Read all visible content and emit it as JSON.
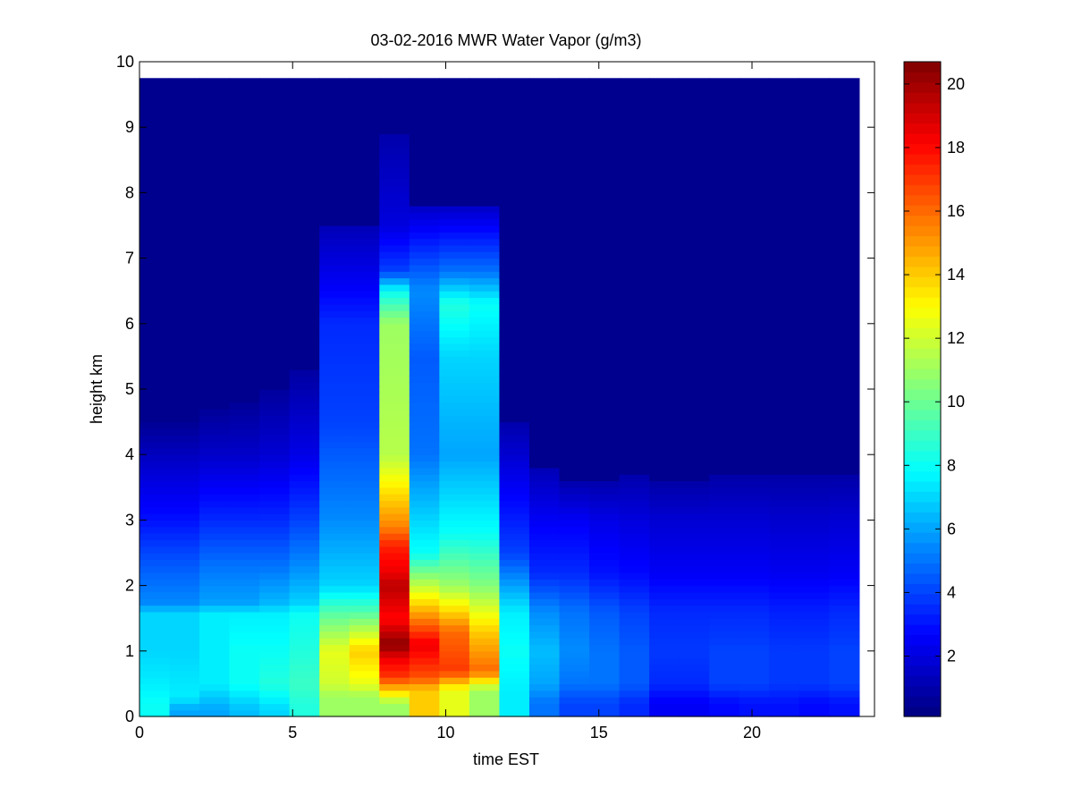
{
  "chart_data": {
    "type": "heatmap",
    "title": "03-02-2016 MWR Water Vapor (g/m3)",
    "xlabel": "time EST",
    "ylabel": "height km",
    "xlim": [
      0,
      24
    ],
    "ylim": [
      0,
      10
    ],
    "xticks": [
      0,
      5,
      10,
      15,
      20
    ],
    "yticks": [
      0,
      1,
      2,
      3,
      4,
      5,
      6,
      7,
      8,
      9,
      10
    ],
    "colorbar": {
      "colormap": "jet",
      "range": [
        0.1,
        20.7
      ],
      "ticks": [
        2,
        4,
        6,
        8,
        10,
        12,
        14,
        16,
        18,
        20
      ]
    },
    "data_extent": {
      "x": [
        0,
        23.5
      ],
      "y": [
        0,
        9.75
      ]
    },
    "columns": [
      {
        "t": 0,
        "cap": 4.5,
        "rows": [
          {
            "h": 0.2,
            "v": 8
          },
          {
            "h": 0.5,
            "v": 7.5
          },
          {
            "h": 1.0,
            "v": 7
          },
          {
            "h": 1.6,
            "v": 7
          },
          {
            "h": 1.7,
            "v": 5.5
          },
          {
            "h": 2.3,
            "v": 4.5
          },
          {
            "h": 3.0,
            "v": 3
          },
          {
            "h": 4.0,
            "v": 1.4
          },
          {
            "h": 4.5,
            "v": 0.5
          }
        ]
      },
      {
        "t": 1,
        "cap": 4.5,
        "rows": [
          {
            "h": 0.1,
            "v": 6
          },
          {
            "h": 0.3,
            "v": 7.5
          },
          {
            "h": 1.0,
            "v": 7
          },
          {
            "h": 1.6,
            "v": 7
          },
          {
            "h": 1.7,
            "v": 5.5
          },
          {
            "h": 2.3,
            "v": 4.5
          },
          {
            "h": 3.0,
            "v": 3
          },
          {
            "h": 4.0,
            "v": 1.4
          },
          {
            "h": 4.5,
            "v": 0.5
          }
        ]
      },
      {
        "t": 2,
        "cap": 4.7,
        "rows": [
          {
            "h": 0.1,
            "v": 6
          },
          {
            "h": 0.5,
            "v": 7.5
          },
          {
            "h": 1.0,
            "v": 7.5
          },
          {
            "h": 1.6,
            "v": 7.5
          },
          {
            "h": 1.7,
            "v": 6
          },
          {
            "h": 2.3,
            "v": 5
          },
          {
            "h": 3.0,
            "v": 3.5
          },
          {
            "h": 4.0,
            "v": 1.6
          },
          {
            "h": 4.7,
            "v": 0.6
          }
        ]
      },
      {
        "t": 3,
        "cap": 4.8,
        "rows": [
          {
            "h": 0.1,
            "v": 6.5
          },
          {
            "h": 0.5,
            "v": 8
          },
          {
            "h": 1.0,
            "v": 8
          },
          {
            "h": 1.6,
            "v": 7.5
          },
          {
            "h": 1.7,
            "v": 6
          },
          {
            "h": 2.3,
            "v": 5
          },
          {
            "h": 3.0,
            "v": 3.5
          },
          {
            "h": 4.0,
            "v": 1.6
          },
          {
            "h": 4.8,
            "v": 0.6
          }
        ]
      },
      {
        "t": 4,
        "cap": 5.0,
        "rows": [
          {
            "h": 0.1,
            "v": 7
          },
          {
            "h": 0.5,
            "v": 8.5
          },
          {
            "h": 1.0,
            "v": 8
          },
          {
            "h": 1.6,
            "v": 7.5
          },
          {
            "h": 1.7,
            "v": 6.5
          },
          {
            "h": 2.3,
            "v": 5
          },
          {
            "h": 3.0,
            "v": 3.5
          },
          {
            "h": 4.0,
            "v": 1.8
          },
          {
            "h": 5.0,
            "v": 0.7
          }
        ]
      },
      {
        "t": 5,
        "cap": 5.3,
        "rows": [
          {
            "h": 0.2,
            "v": 8.5
          },
          {
            "h": 0.5,
            "v": 9
          },
          {
            "h": 1.0,
            "v": 8.5
          },
          {
            "h": 1.6,
            "v": 8
          },
          {
            "h": 1.7,
            "v": 7
          },
          {
            "h": 2.3,
            "v": 5.5
          },
          {
            "h": 3.0,
            "v": 4
          },
          {
            "h": 4.0,
            "v": 2.2
          },
          {
            "h": 5.3,
            "v": 0.8
          }
        ]
      },
      {
        "t": 6,
        "cap": 7.5,
        "rows": [
          {
            "h": 0.3,
            "v": 11
          },
          {
            "h": 0.5,
            "v": 12
          },
          {
            "h": 1.0,
            "v": 12.5
          },
          {
            "h": 1.6,
            "v": 9.5
          },
          {
            "h": 2.0,
            "v": 7
          },
          {
            "h": 3.0,
            "v": 5.5
          },
          {
            "h": 4.5,
            "v": 4
          },
          {
            "h": 6.0,
            "v": 3.5
          },
          {
            "h": 6.6,
            "v": 2.5
          },
          {
            "h": 7.5,
            "v": 1.2
          }
        ]
      },
      {
        "t": 7,
        "cap": 7.5,
        "rows": [
          {
            "h": 0.3,
            "v": 11
          },
          {
            "h": 0.5,
            "v": 12.5
          },
          {
            "h": 1.0,
            "v": 14
          },
          {
            "h": 1.6,
            "v": 9.5
          },
          {
            "h": 2.0,
            "v": 7
          },
          {
            "h": 3.0,
            "v": 5.5
          },
          {
            "h": 4.5,
            "v": 4
          },
          {
            "h": 6.0,
            "v": 3.5
          },
          {
            "h": 6.6,
            "v": 2.5
          },
          {
            "h": 7.5,
            "v": 1.2
          }
        ]
      },
      {
        "t": 8,
        "cap": 8.9,
        "rows": [
          {
            "h": 0.2,
            "v": 11
          },
          {
            "h": 0.4,
            "v": 14
          },
          {
            "h": 0.6,
            "v": 17
          },
          {
            "h": 0.9,
            "v": 18.5
          },
          {
            "h": 1.1,
            "v": 20.5
          },
          {
            "h": 1.5,
            "v": 18
          },
          {
            "h": 2.0,
            "v": 19.5
          },
          {
            "h": 2.2,
            "v": 18.5
          },
          {
            "h": 2.6,
            "v": 17.5
          },
          {
            "h": 2.9,
            "v": 15.5
          },
          {
            "h": 4.0,
            "v": 11.5
          },
          {
            "h": 6.0,
            "v": 11
          },
          {
            "h": 6.5,
            "v": 8
          },
          {
            "h": 6.8,
            "v": 4
          },
          {
            "h": 7.5,
            "v": 2
          },
          {
            "h": 8.9,
            "v": 1
          }
        ]
      },
      {
        "t": 9,
        "cap": 7.8,
        "rows": [
          {
            "h": 0.4,
            "v": 14
          },
          {
            "h": 0.6,
            "v": 16.5
          },
          {
            "h": 1.1,
            "v": 18.5
          },
          {
            "h": 2.5,
            "v": 8
          },
          {
            "h": 4.0,
            "v": 5
          },
          {
            "h": 5.5,
            "v": 4.5
          },
          {
            "h": 6.5,
            "v": 5.5
          },
          {
            "h": 7.8,
            "v": 1.5
          }
        ]
      },
      {
        "t": 10,
        "cap": 7.8,
        "rows": [
          {
            "h": 0.4,
            "v": 12.5
          },
          {
            "h": 0.7,
            "v": 17
          },
          {
            "h": 1.3,
            "v": 16
          },
          {
            "h": 2.0,
            "v": 11
          },
          {
            "h": 2.8,
            "v": 8
          },
          {
            "h": 4.0,
            "v": 6
          },
          {
            "h": 5.5,
            "v": 7
          },
          {
            "h": 6.3,
            "v": 8.5
          },
          {
            "h": 6.8,
            "v": 5
          },
          {
            "h": 7.8,
            "v": 1.5
          }
        ]
      },
      {
        "t": 11,
        "cap": 7.8,
        "rows": [
          {
            "h": 0.4,
            "v": 11
          },
          {
            "h": 0.7,
            "v": 16
          },
          {
            "h": 1.3,
            "v": 14
          },
          {
            "h": 2.0,
            "v": 10.5
          },
          {
            "h": 2.8,
            "v": 8
          },
          {
            "h": 4.0,
            "v": 6
          },
          {
            "h": 5.5,
            "v": 7
          },
          {
            "h": 6.3,
            "v": 8
          },
          {
            "h": 6.8,
            "v": 5
          },
          {
            "h": 7.8,
            "v": 1.5
          }
        ]
      },
      {
        "t": 12,
        "cap": 4.5,
        "rows": [
          {
            "h": 0.4,
            "v": 7.5
          },
          {
            "h": 1.0,
            "v": 8
          },
          {
            "h": 1.6,
            "v": 7.5
          },
          {
            "h": 2.5,
            "v": 4
          },
          {
            "h": 3.5,
            "v": 2.5
          },
          {
            "h": 4.5,
            "v": 1
          }
        ]
      },
      {
        "t": 13,
        "cap": 3.8,
        "rows": [
          {
            "h": 0.2,
            "v": 5
          },
          {
            "h": 0.5,
            "v": 6
          },
          {
            "h": 1.0,
            "v": 6.5
          },
          {
            "h": 1.6,
            "v": 5.5
          },
          {
            "h": 2.2,
            "v": 3.5
          },
          {
            "h": 3.0,
            "v": 2.5
          },
          {
            "h": 3.8,
            "v": 1.2
          }
        ]
      },
      {
        "t": 14,
        "cap": 3.6,
        "rows": [
          {
            "h": 0.2,
            "v": 4
          },
          {
            "h": 0.5,
            "v": 5
          },
          {
            "h": 1.0,
            "v": 5.5
          },
          {
            "h": 1.6,
            "v": 5
          },
          {
            "h": 2.2,
            "v": 3.5
          },
          {
            "h": 3.0,
            "v": 2.5
          },
          {
            "h": 3.6,
            "v": 1
          }
        ]
      },
      {
        "t": 15,
        "cap": 3.6,
        "rows": [
          {
            "h": 0.2,
            "v": 4
          },
          {
            "h": 0.5,
            "v": 5
          },
          {
            "h": 1.0,
            "v": 5
          },
          {
            "h": 1.6,
            "v": 4.5
          },
          {
            "h": 2.2,
            "v": 3
          },
          {
            "h": 3.0,
            "v": 2.2
          },
          {
            "h": 3.6,
            "v": 1
          }
        ]
      },
      {
        "t": 16,
        "cap": 3.7,
        "rows": [
          {
            "h": 0.2,
            "v": 3.5
          },
          {
            "h": 0.5,
            "v": 4.5
          },
          {
            "h": 1.0,
            "v": 4.5
          },
          {
            "h": 1.6,
            "v": 4
          },
          {
            "h": 2.2,
            "v": 2.8
          },
          {
            "h": 3.0,
            "v": 2
          },
          {
            "h": 3.7,
            "v": 1
          }
        ]
      },
      {
        "t": 17,
        "cap": 3.6,
        "rows": [
          {
            "h": 0.2,
            "v": 2.5
          },
          {
            "h": 0.5,
            "v": 3.5
          },
          {
            "h": 1.0,
            "v": 3.8
          },
          {
            "h": 1.6,
            "v": 3.5
          },
          {
            "h": 2.2,
            "v": 2.5
          },
          {
            "h": 3.0,
            "v": 1.8
          },
          {
            "h": 3.6,
            "v": 0.9
          }
        ]
      },
      {
        "t": 18,
        "cap": 3.6,
        "rows": [
          {
            "h": 0.2,
            "v": 2.5
          },
          {
            "h": 0.5,
            "v": 3.5
          },
          {
            "h": 1.0,
            "v": 3.8
          },
          {
            "h": 1.6,
            "v": 3.5
          },
          {
            "h": 2.2,
            "v": 2.5
          },
          {
            "h": 3.0,
            "v": 1.8
          },
          {
            "h": 3.6,
            "v": 0.9
          }
        ]
      },
      {
        "t": 19,
        "cap": 3.7,
        "rows": [
          {
            "h": 0.2,
            "v": 2.8
          },
          {
            "h": 0.5,
            "v": 4
          },
          {
            "h": 1.0,
            "v": 4
          },
          {
            "h": 1.6,
            "v": 3.5
          },
          {
            "h": 2.2,
            "v": 2.5
          },
          {
            "h": 3.0,
            "v": 1.8
          },
          {
            "h": 3.7,
            "v": 0.9
          }
        ]
      },
      {
        "t": 20,
        "cap": 3.7,
        "rows": [
          {
            "h": 0.2,
            "v": 3
          },
          {
            "h": 0.5,
            "v": 4
          },
          {
            "h": 1.0,
            "v": 4
          },
          {
            "h": 1.6,
            "v": 3.5
          },
          {
            "h": 2.2,
            "v": 2.5
          },
          {
            "h": 3.0,
            "v": 1.8
          },
          {
            "h": 3.7,
            "v": 0.9
          }
        ]
      },
      {
        "t": 21,
        "cap": 3.7,
        "rows": [
          {
            "h": 0.2,
            "v": 3
          },
          {
            "h": 0.5,
            "v": 3.8
          },
          {
            "h": 1.0,
            "v": 3.8
          },
          {
            "h": 1.6,
            "v": 3.3
          },
          {
            "h": 2.2,
            "v": 2.4
          },
          {
            "h": 3.0,
            "v": 1.7
          },
          {
            "h": 3.7,
            "v": 0.9
          }
        ]
      },
      {
        "t": 22,
        "cap": 3.7,
        "rows": [
          {
            "h": 0.2,
            "v": 2.8
          },
          {
            "h": 0.5,
            "v": 3.8
          },
          {
            "h": 1.0,
            "v": 3.8
          },
          {
            "h": 1.6,
            "v": 3.3
          },
          {
            "h": 2.2,
            "v": 2.4
          },
          {
            "h": 3.0,
            "v": 1.7
          },
          {
            "h": 3.7,
            "v": 0.9
          }
        ]
      },
      {
        "t": 23,
        "cap": 3.7,
        "rows": [
          {
            "h": 0.2,
            "v": 3
          },
          {
            "h": 0.5,
            "v": 4
          },
          {
            "h": 1.0,
            "v": 4
          },
          {
            "h": 1.6,
            "v": 3.5
          },
          {
            "h": 2.2,
            "v": 2.5
          },
          {
            "h": 3.0,
            "v": 1.8
          },
          {
            "h": 3.7,
            "v": 0.9
          }
        ]
      }
    ]
  }
}
